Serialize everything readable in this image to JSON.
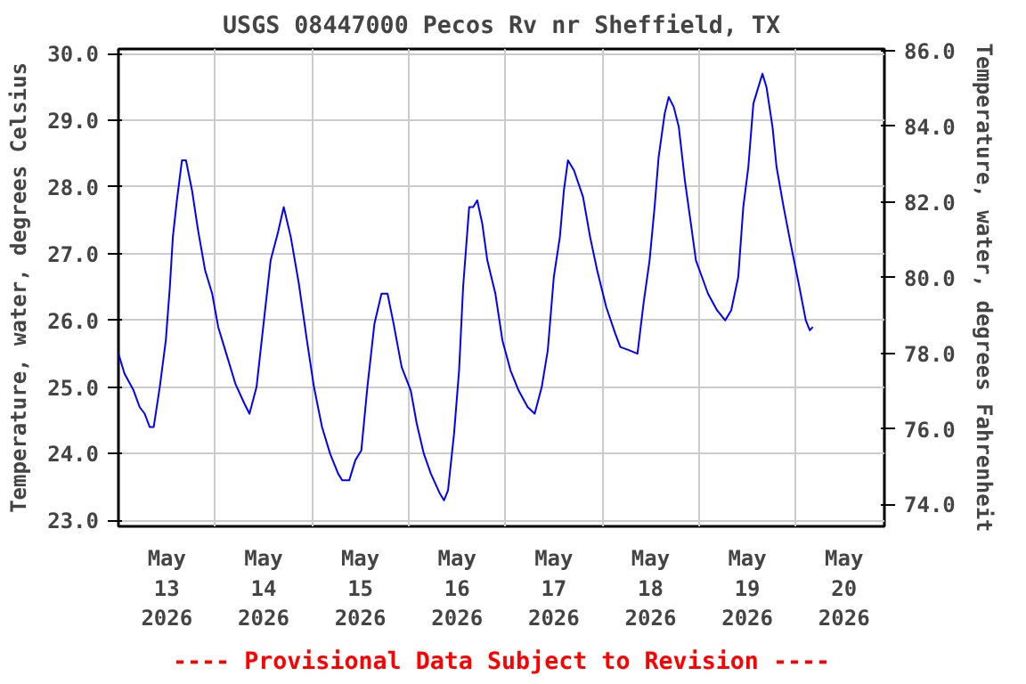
{
  "chart_data": {
    "type": "line",
    "title": "USGS 08447000 Pecos Rv nr Sheffield, TX",
    "ylabel": "Temperature, water, degrees Celsius",
    "y2label": "Temperature, water, degrees Fahrenheit",
    "annotations": [
      "---- Provisional Data Subject to Revision ----"
    ],
    "x": [
      "2026-05-13T00:00",
      "2026-05-13T01:30",
      "2026-05-13T03:45",
      "2026-05-13T05:15",
      "2026-05-13T06:30",
      "2026-05-13T07:45",
      "2026-05-13T08:45",
      "2026-05-13T10:15",
      "2026-05-13T11:45",
      "2026-05-13T12:45",
      "2026-05-13T13:30",
      "2026-05-13T14:30",
      "2026-05-13T15:45",
      "2026-05-13T16:45",
      "2026-05-13T18:15",
      "2026-05-13T19:45",
      "2026-05-13T21:30",
      "2026-05-13T23:15",
      "2026-05-14T00:45",
      "2026-05-14T02:45",
      "2026-05-14T05:00",
      "2026-05-14T07:15",
      "2026-05-14T08:30",
      "2026-05-14T10:15",
      "2026-05-14T12:00",
      "2026-05-14T13:45",
      "2026-05-14T15:30",
      "2026-05-14T17:00",
      "2026-05-14T18:45",
      "2026-05-14T20:45",
      "2026-05-14T22:45",
      "2026-05-15T00:30",
      "2026-05-15T02:30",
      "2026-05-15T04:30",
      "2026-05-15T06:30",
      "2026-05-15T07:30",
      "2026-05-15T09:15",
      "2026-05-15T10:45",
      "2026-05-15T12:15",
      "2026-05-15T13:45",
      "2026-05-15T15:30",
      "2026-05-15T17:15",
      "2026-05-15T18:45",
      "2026-05-15T20:15",
      "2026-05-15T22:15",
      "2026-05-16T00:30",
      "2026-05-16T02:00",
      "2026-05-16T03:45",
      "2026-05-16T05:30",
      "2026-05-16T07:45",
      "2026-05-16T08:45",
      "2026-05-16T09:45",
      "2026-05-16T11:15",
      "2026-05-16T12:30",
      "2026-05-16T13:30",
      "2026-05-16T15:00",
      "2026-05-16T16:00",
      "2026-05-16T17:00",
      "2026-05-16T18:15",
      "2026-05-16T19:30",
      "2026-05-16T21:30",
      "2026-05-16T23:15",
      "2026-05-17T01:15",
      "2026-05-17T03:15",
      "2026-05-17T05:30",
      "2026-05-17T07:15",
      "2026-05-17T09:00",
      "2026-05-17T10:30",
      "2026-05-17T12:00",
      "2026-05-17T13:30",
      "2026-05-17T14:30",
      "2026-05-17T15:30",
      "2026-05-17T17:00",
      "2026-05-17T19:15",
      "2026-05-17T21:00",
      "2026-05-17T22:45",
      "2026-05-18T01:00",
      "2026-05-18T03:15",
      "2026-05-18T04:30",
      "2026-05-18T06:45",
      "2026-05-18T08:45",
      "2026-05-18T10:15",
      "2026-05-18T11:45",
      "2026-05-18T13:00",
      "2026-05-18T14:00",
      "2026-05-18T15:30",
      "2026-05-18T16:30",
      "2026-05-18T17:45",
      "2026-05-18T19:00",
      "2026-05-18T20:30",
      "2026-05-18T22:00",
      "2026-05-18T23:15",
      "2026-05-19T00:45",
      "2026-05-19T02:15",
      "2026-05-19T04:30",
      "2026-05-19T06:30",
      "2026-05-19T08:00",
      "2026-05-19T09:45",
      "2026-05-19T11:00",
      "2026-05-19T12:15",
      "2026-05-19T13:30",
      "2026-05-19T14:30",
      "2026-05-19T15:45",
      "2026-05-19T16:45",
      "2026-05-19T18:15",
      "2026-05-19T19:15",
      "2026-05-19T21:00",
      "2026-05-19T22:45",
      "2026-05-20T00:45",
      "2026-05-20T02:30",
      "2026-05-20T03:30",
      "2026-05-20T04:15"
    ],
    "series": [
      {
        "color": "#0000ff",
        "values": [
          25.5,
          25.2,
          24.95,
          24.7,
          24.6,
          24.4,
          24.4,
          25.0,
          25.7,
          26.5,
          27.25,
          27.8,
          28.4,
          28.4,
          27.95,
          27.35,
          26.75,
          26.4,
          25.9,
          25.5,
          25.05,
          24.75,
          24.6,
          25.0,
          25.95,
          26.9,
          27.3,
          27.7,
          27.25,
          26.55,
          25.7,
          25.0,
          24.4,
          24.0,
          23.7,
          23.6,
          23.6,
          23.9,
          24.05,
          25.0,
          25.95,
          26.4,
          26.4,
          25.95,
          25.3,
          24.95,
          24.45,
          24.0,
          23.7,
          23.4,
          23.3,
          23.45,
          24.3,
          25.25,
          26.5,
          27.7,
          27.7,
          27.8,
          27.45,
          26.9,
          26.4,
          25.7,
          25.25,
          24.95,
          24.7,
          24.6,
          25.0,
          25.55,
          26.65,
          27.25,
          27.95,
          28.4,
          28.25,
          27.85,
          27.25,
          26.75,
          26.2,
          25.8,
          25.6,
          25.55,
          25.5,
          26.25,
          26.9,
          27.7,
          28.45,
          29.1,
          29.35,
          29.2,
          28.9,
          28.1,
          27.45,
          26.9,
          26.65,
          26.4,
          26.15,
          26.0,
          26.15,
          26.65,
          27.7,
          28.3,
          29.25,
          29.45,
          29.7,
          29.5,
          28.9,
          28.3,
          27.7,
          27.15,
          26.55,
          26.0,
          25.85,
          25.9
        ]
      }
    ],
    "xlim": [
      "2026-05-13T00:00",
      "2026-05-20T22:00"
    ],
    "xticks": [
      {
        "value": "2026-05-13T12:00",
        "label": "May\n13\n2026"
      },
      {
        "value": "2026-05-14T12:00",
        "label": "May\n14\n2026"
      },
      {
        "value": "2026-05-15T12:00",
        "label": "May\n15\n2026"
      },
      {
        "value": "2026-05-16T12:00",
        "label": "May\n16\n2026"
      },
      {
        "value": "2026-05-17T12:00",
        "label": "May\n17\n2026"
      },
      {
        "value": "2026-05-18T12:00",
        "label": "May\n18\n2026"
      },
      {
        "value": "2026-05-19T12:00",
        "label": "May\n19\n2026"
      },
      {
        "value": "2026-05-20T12:00",
        "label": "May\n20\n2026"
      },
      {
        "value": "2026-05-14T00:00",
        "label": null
      },
      {
        "value": "2026-05-15T00:00",
        "label": null
      },
      {
        "value": "2026-05-16T00:00",
        "label": null
      },
      {
        "value": "2026-05-17T00:00",
        "label": null
      },
      {
        "value": "2026-05-18T00:00",
        "label": null
      },
      {
        "value": "2026-05-19T00:00",
        "label": null
      },
      {
        "value": "2026-05-20T00:00",
        "label": null
      }
    ],
    "ylim": [
      22.91,
      30.07
    ],
    "yticks": [
      {
        "value": 23,
        "label": "23.0"
      },
      {
        "value": 24,
        "label": "24.0"
      },
      {
        "value": 25,
        "label": "25.0"
      },
      {
        "value": 26,
        "label": "26.0"
      },
      {
        "value": 27,
        "label": "27.0"
      },
      {
        "value": 28,
        "label": "28.0"
      },
      {
        "value": 29,
        "label": "29.0"
      },
      {
        "value": 30,
        "label": "30.0"
      }
    ],
    "y2lim": [
      73.42,
      86.05
    ],
    "y2ticks": [
      {
        "value": 74,
        "label": "74.0"
      },
      {
        "value": 76,
        "label": "76.0"
      },
      {
        "value": 78,
        "label": "78.0"
      },
      {
        "value": 80,
        "label": "80.0"
      },
      {
        "value": 82,
        "label": "82.0"
      },
      {
        "value": 84,
        "label": "84.0"
      },
      {
        "value": 86,
        "label": "86.0"
      }
    ],
    "grid": true,
    "line_style": "solid"
  }
}
